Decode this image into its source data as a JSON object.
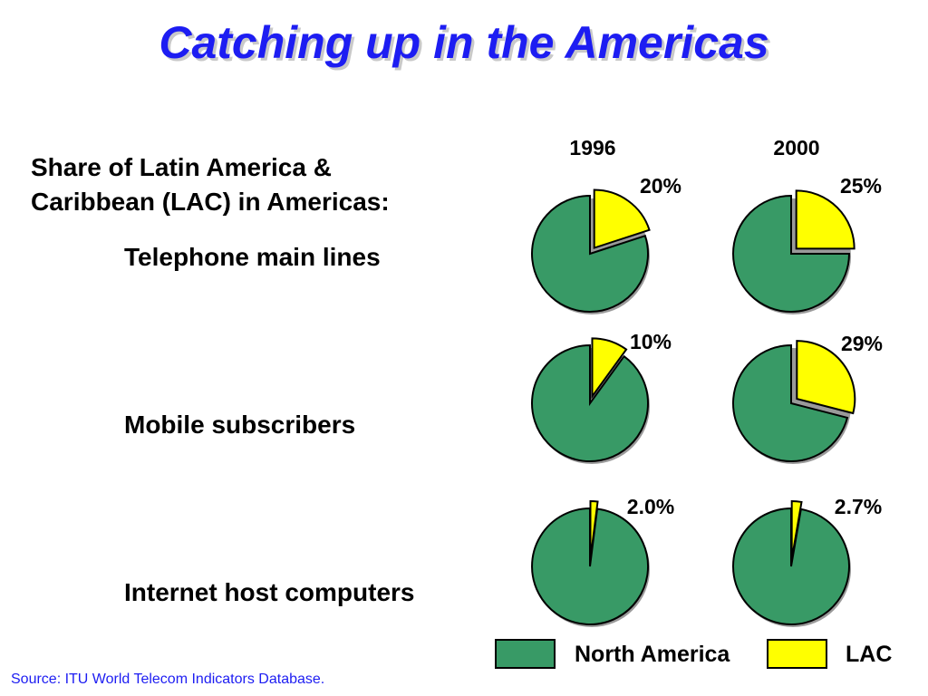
{
  "slide": {
    "title": "Catching up in the Americas",
    "subtitle_line1": "Share of Latin America &",
    "subtitle_line2": "Caribbean (LAC) in Americas:",
    "source": "Source:  ITU World Telecom Indicators Database."
  },
  "colors": {
    "north_america": "#389a66",
    "lac": "#ffff00",
    "title": "#1d1df2"
  },
  "chart_data": {
    "type": "pie",
    "years": [
      "1996",
      "2000"
    ],
    "legend": [
      "North America",
      "LAC"
    ],
    "rows": [
      {
        "label": "Telephone main lines",
        "lac_share": [
          20,
          25
        ],
        "labels": [
          "20%",
          "25%"
        ]
      },
      {
        "label": "Mobile subscribers",
        "lac_share": [
          10,
          29
        ],
        "labels": [
          "10%",
          "29%"
        ]
      },
      {
        "label": "Internet host computers",
        "lac_share": [
          2.0,
          2.7
        ],
        "labels": [
          "2.0%",
          "2.7%"
        ]
      }
    ]
  }
}
